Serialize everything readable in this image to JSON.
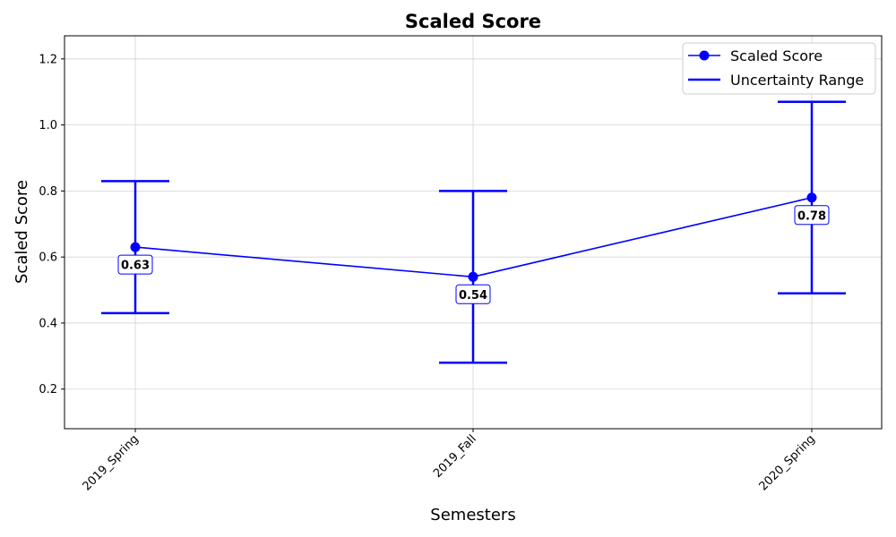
{
  "chart_data": {
    "type": "line",
    "title": "Scaled Score",
    "xlabel": "Semesters",
    "ylabel": "Scaled Score",
    "categories": [
      "2019_Spring",
      "2019_Fall",
      "2020_Spring"
    ],
    "ylim": [
      0.08,
      1.27
    ],
    "yticks": [
      "0.2",
      "0.4",
      "0.6",
      "0.8",
      "1.0",
      "1.2"
    ],
    "grid": true,
    "legend_position": "top-right",
    "series": [
      {
        "name": "Scaled Score",
        "values": [
          0.63,
          0.54,
          0.78
        ],
        "value_labels": [
          "0.63",
          "0.54",
          "0.78"
        ],
        "color": "#0000ff"
      }
    ],
    "uncertainty": {
      "name": "Uncertainty Range",
      "lower": [
        0.43,
        0.28,
        0.49
      ],
      "upper": [
        0.83,
        0.8,
        1.07
      ],
      "color": "#0000ff"
    },
    "legend": [
      {
        "label": "Scaled Score"
      },
      {
        "label": "Uncertainty Range"
      }
    ]
  }
}
